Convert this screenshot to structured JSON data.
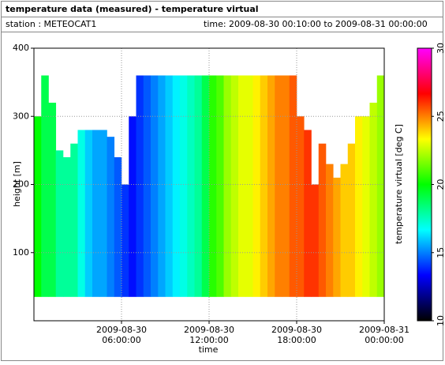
{
  "chart_data": {
    "type": "heatmap",
    "title": "temperature data (measured) - temperature virtual",
    "station": "station : METEOCAT1",
    "time_range": "time: 2009-08-30 00:10:00 to 2009-08-31 00:00:00",
    "x_label": "time",
    "y_label": "height [m]",
    "colorbar_label": "temperature virtual [deg C]",
    "x": [
      0,
      0.5,
      1,
      1.5,
      2,
      2.5,
      3,
      3.5,
      4,
      4.5,
      5,
      5.5,
      6,
      6.5,
      7,
      7.5,
      8,
      8.5,
      9,
      9.5,
      10,
      10.5,
      11,
      11.5,
      12,
      12.5,
      13,
      13.5,
      14,
      14.5,
      15,
      15.5,
      16,
      16.5,
      17,
      17.5,
      18,
      18.5,
      19,
      19.5,
      20,
      20.5,
      21,
      21.5,
      22,
      22.5,
      23,
      23.5
    ],
    "column_width": 0.5,
    "base_height": 35,
    "tops": [
      300,
      360,
      320,
      250,
      240,
      260,
      280,
      280,
      280,
      280,
      270,
      240,
      200,
      300,
      360,
      360,
      360,
      360,
      360,
      360,
      360,
      360,
      360,
      360,
      360,
      360,
      360,
      360,
      360,
      360,
      360,
      360,
      360,
      360,
      360,
      360,
      300,
      280,
      200,
      260,
      230,
      210,
      230,
      260,
      300,
      300,
      320,
      360
    ],
    "values": [
      20,
      19,
      19,
      18,
      18,
      18,
      17,
      16,
      15.5,
      15.5,
      15,
      14.5,
      14,
      13.5,
      14,
      14.5,
      15,
      15.5,
      16,
      16.5,
      17,
      17.5,
      18,
      19,
      20.5,
      21,
      22,
      22.5,
      23,
      23,
      23.5,
      24,
      24.5,
      25,
      25,
      25.5,
      25.5,
      26,
      26,
      25.5,
      25,
      24.5,
      24,
      24,
      23.5,
      23,
      22.5,
      22
    ],
    "xlim": [
      0,
      24
    ],
    "xticks": [
      {
        "value": 6,
        "label": "2009-08-30 06:00:00"
      },
      {
        "value": 12,
        "label": "2009-08-30 12:00:00"
      },
      {
        "value": 18,
        "label": "2009-08-30 18:00:00"
      },
      {
        "value": 24,
        "label": "2009-08-31 00:00:00"
      }
    ],
    "ylim": [
      0,
      400
    ],
    "yticks": [
      100,
      200,
      300,
      400
    ],
    "clim": [
      10,
      30
    ],
    "cticks": [
      10,
      15,
      20,
      25,
      30
    ],
    "colormap": [
      "#000000",
      "#0000ff",
      "#00ffff",
      "#00ff00",
      "#ffff00",
      "#ff0000",
      "#ff00ff"
    ],
    "grid": true
  }
}
